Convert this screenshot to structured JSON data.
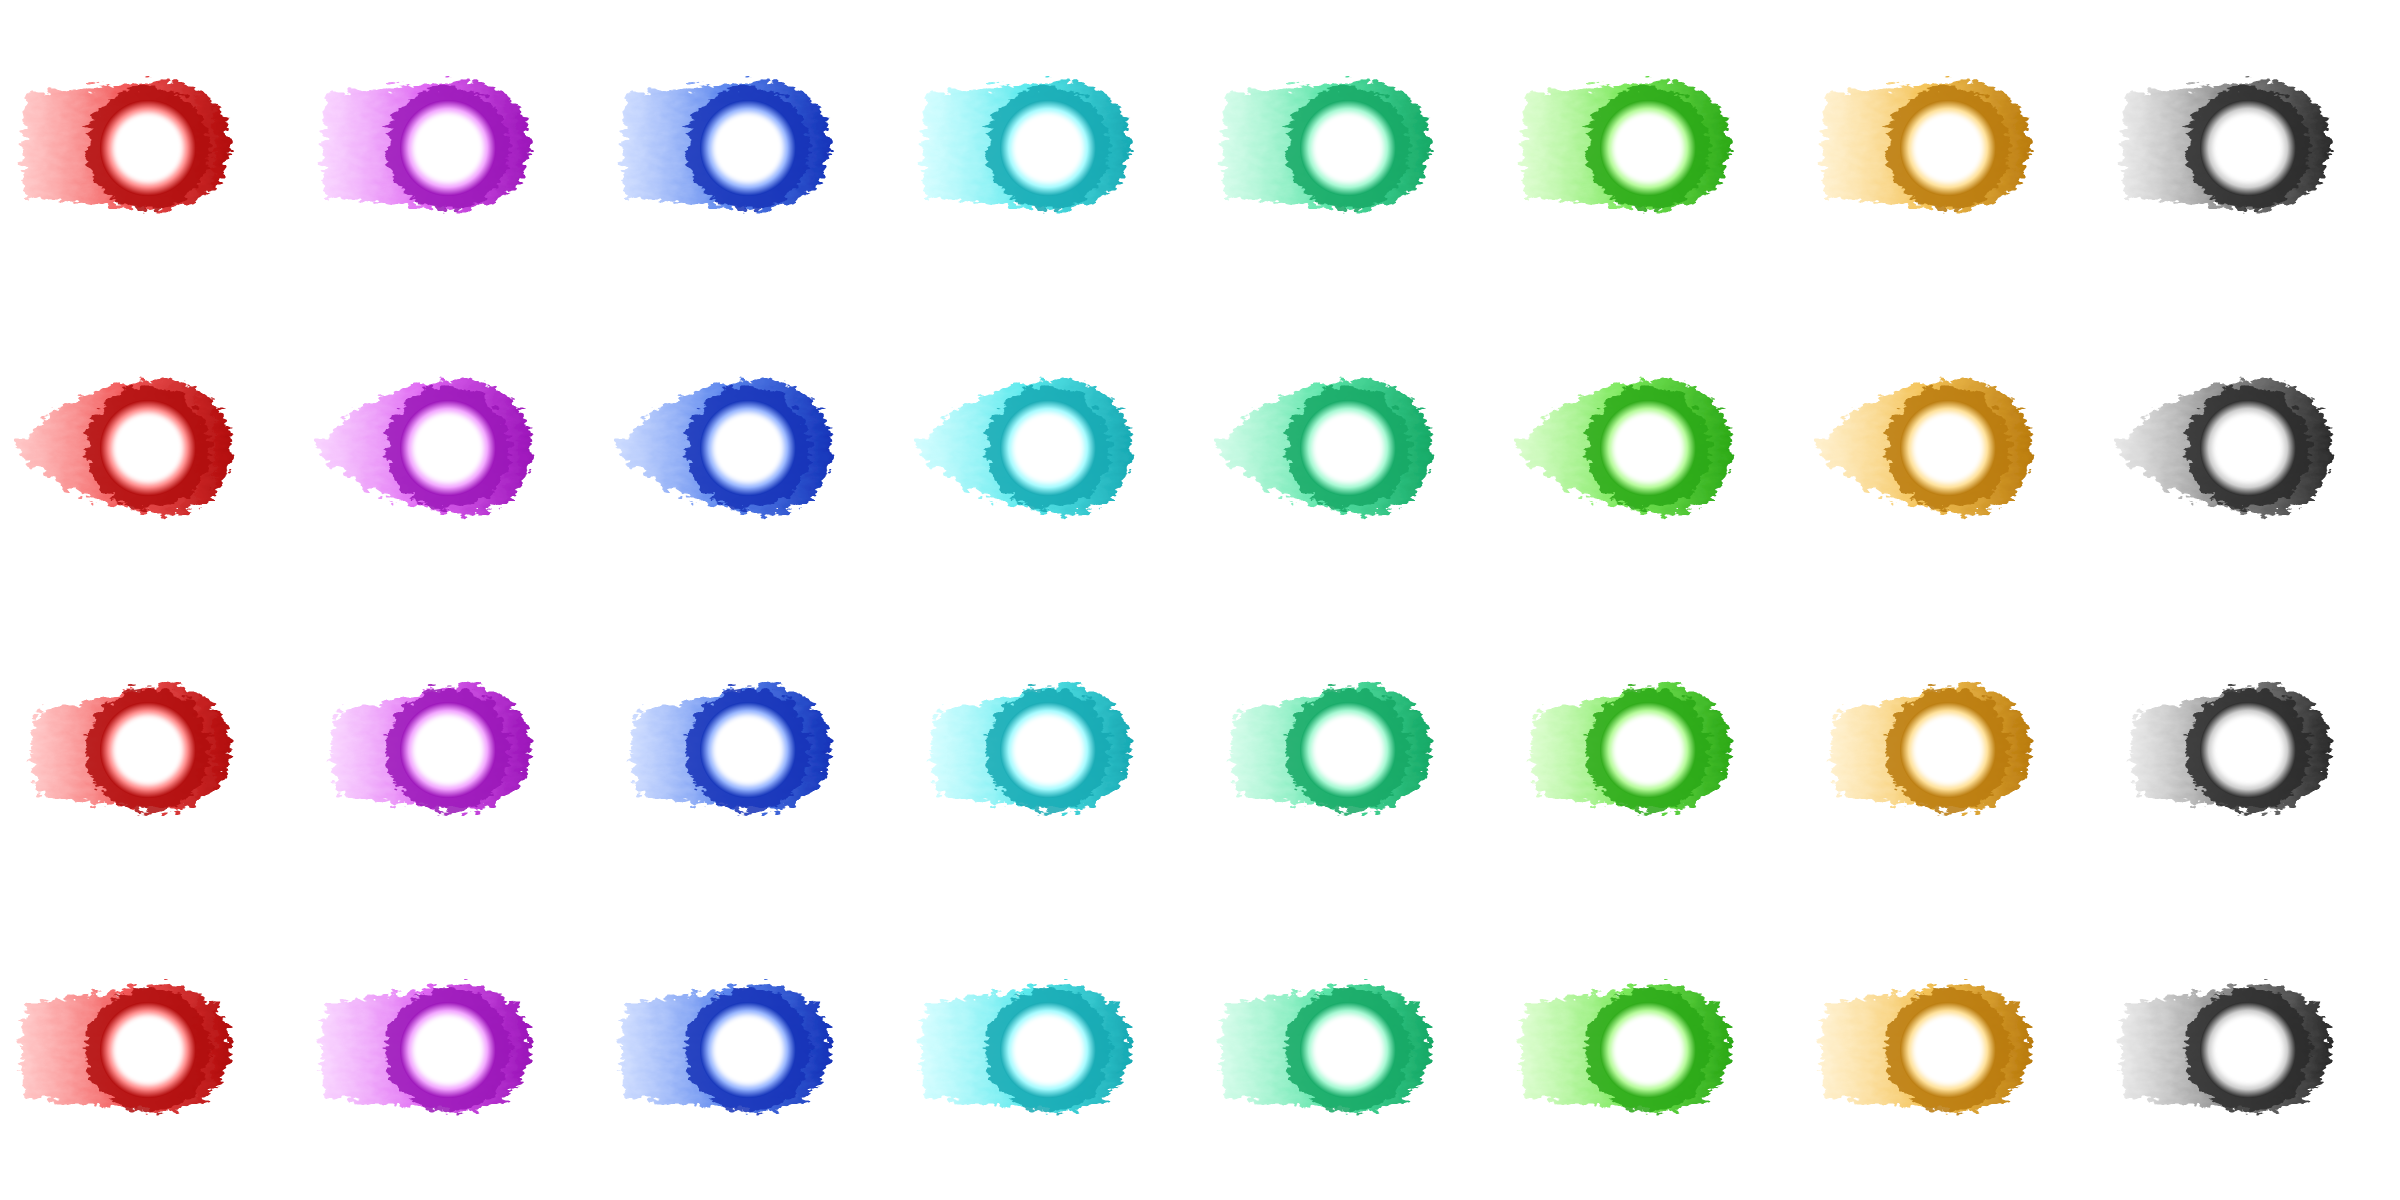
{
  "sprite_sheet": {
    "background": "#ffffff",
    "rows": 4,
    "columns": 8,
    "variants": [
      {
        "name": "red",
        "body": "#ef3b3b",
        "dark": "#b00a0a",
        "light": "#ff8c8c"
      },
      {
        "name": "purple",
        "body": "#d94cf0",
        "dark": "#9a12b8",
        "light": "#f2a6ff"
      },
      {
        "name": "blue",
        "body": "#3f71ea",
        "dark": "#1232b8",
        "light": "#98b6ff"
      },
      {
        "name": "cyan",
        "body": "#3fe6ea",
        "dark": "#17a9b3",
        "light": "#a6fbff"
      },
      {
        "name": "mint",
        "body": "#3fe09a",
        "dark": "#13a865",
        "light": "#a6f9d3"
      },
      {
        "name": "green",
        "body": "#63e43d",
        "dark": "#2ba816",
        "light": "#b6fb9a"
      },
      {
        "name": "amber",
        "body": "#f2b83a",
        "dark": "#b97a0c",
        "light": "#ffe19a"
      },
      {
        "name": "gray",
        "body": "#777777",
        "dark": "#2a2a2a",
        "light": "#cfcfcf"
      }
    ],
    "row_styles": [
      "flat-tail",
      "tapered-tail",
      "compact-tail",
      "short-tail"
    ],
    "sprite_shape": "fuzzy-comet-with-glowing-white-core"
  }
}
